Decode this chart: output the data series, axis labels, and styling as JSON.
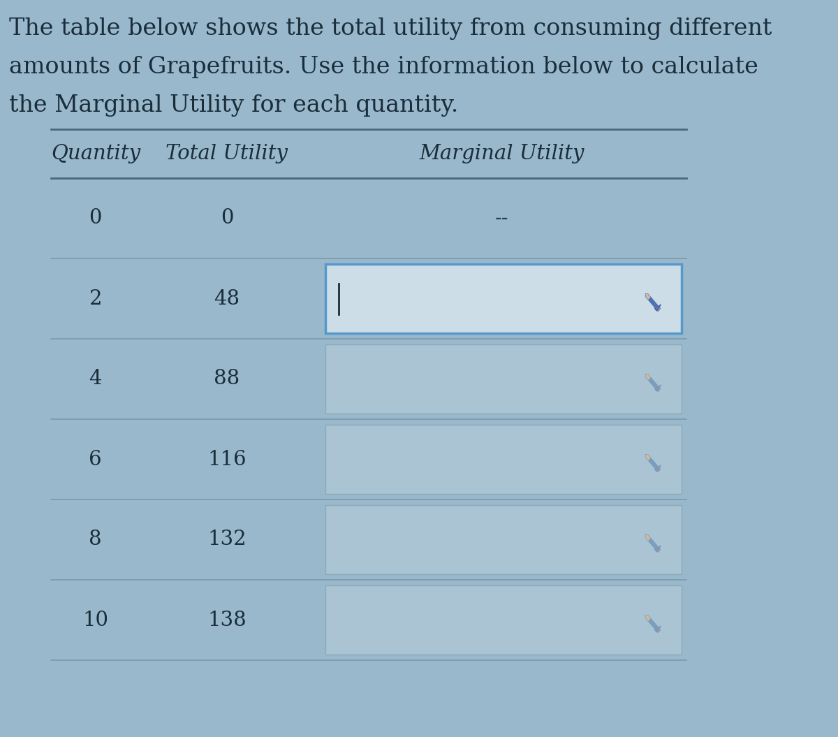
{
  "description_text": "The table below shows the total utility from consuming different\namounts of Grapefruits. Use the information below to calculate\nthe Marginal Utility for each quantity.",
  "headers": [
    "Quantity",
    "Total Utility",
    "Marginal Utility"
  ],
  "rows": [
    {
      "quantity": "0",
      "total_utility": "0",
      "marginal_utility": "--",
      "has_input_box": false,
      "input_active": false
    },
    {
      "quantity": "2",
      "total_utility": "48",
      "marginal_utility": "",
      "has_input_box": true,
      "input_active": true
    },
    {
      "quantity": "4",
      "total_utility": "88",
      "marginal_utility": "",
      "has_input_box": true,
      "input_active": false
    },
    {
      "quantity": "6",
      "total_utility": "116",
      "marginal_utility": "",
      "has_input_box": true,
      "input_active": false
    },
    {
      "quantity": "8",
      "total_utility": "132",
      "marginal_utility": "",
      "has_input_box": true,
      "input_active": false
    },
    {
      "quantity": "10",
      "total_utility": "138",
      "marginal_utility": "",
      "has_input_box": true,
      "input_active": false
    }
  ],
  "bg_color": "#9ab8cc",
  "line_color_heavy": "#4a6878",
  "line_color_light": "#7a9aaa",
  "active_box_border": "#5599cc",
  "active_box_fill": "#ccdde8",
  "inactive_box_border": "#88aabb",
  "inactive_box_fill": "#aac4d4",
  "text_color": "#1a2d3a",
  "dash_color": "#2a4050",
  "pencil_active_color": "#4466aa",
  "pencil_inactive_color": "#7799bb",
  "header_font_size": 21,
  "body_font_size": 21,
  "desc_font_size": 24
}
